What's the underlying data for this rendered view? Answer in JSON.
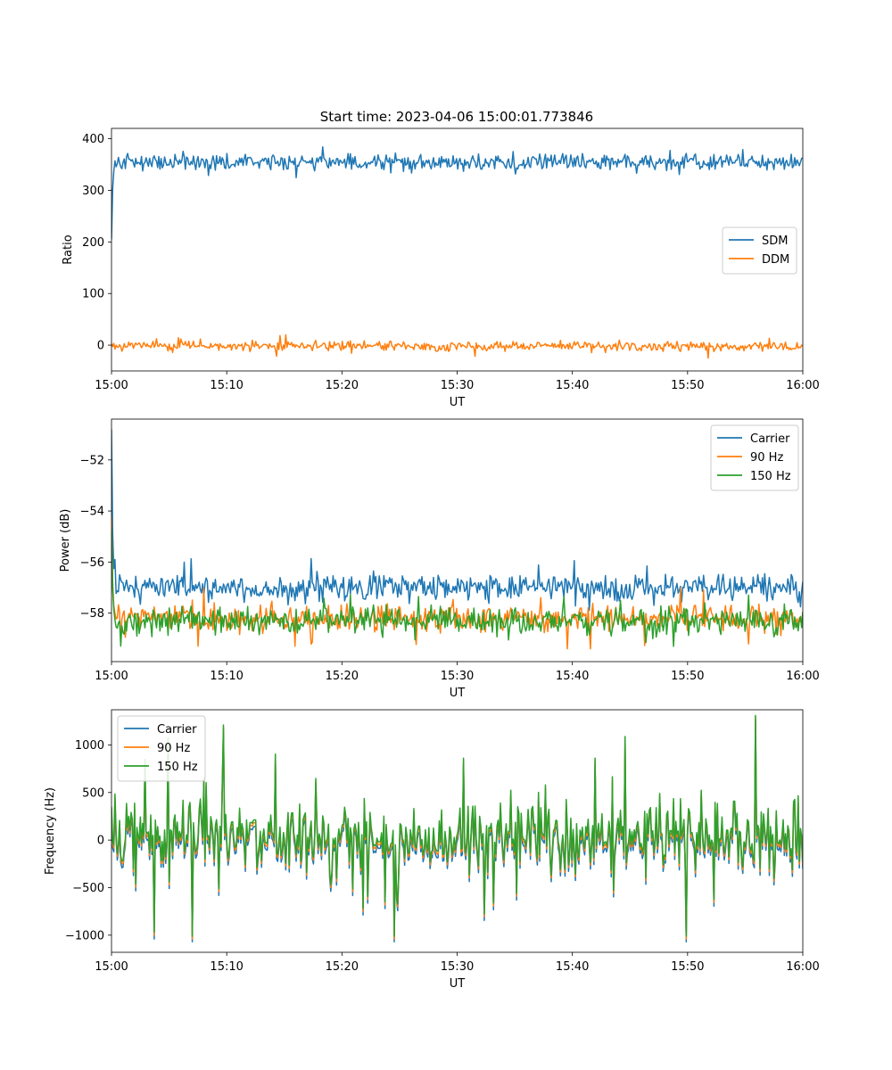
{
  "figure_title": "Start time: 2023-04-06 15:00:01.773846",
  "colors": {
    "blue": "#1f77b4",
    "orange": "#ff7f0e",
    "green": "#2ca02c"
  },
  "chart_data": [
    {
      "type": "line",
      "ylabel": "Ratio",
      "xlabel": "UT",
      "x_range": [
        "15:00",
        "16:00"
      ],
      "x_ticks": [
        "15:00",
        "15:10",
        "15:20",
        "15:30",
        "15:40",
        "15:50",
        "16:00"
      ],
      "ylim": [
        -50,
        420
      ],
      "y_ticks": [
        0,
        100,
        200,
        300,
        400
      ],
      "legend_position": "center-right",
      "series": [
        {
          "name": "SDM",
          "color": "#1f77b4",
          "start_value": 205,
          "mean": 355,
          "noise": 28,
          "min": 308,
          "max": 400
        },
        {
          "name": "DDM",
          "color": "#ff7f0e",
          "mean": -2,
          "noise": 16,
          "min": -26,
          "max": 24
        }
      ]
    },
    {
      "type": "line",
      "ylabel": "Power (dB)",
      "xlabel": "UT",
      "x_range": [
        "15:00",
        "16:00"
      ],
      "x_ticks": [
        "15:00",
        "15:10",
        "15:20",
        "15:30",
        "15:40",
        "15:50",
        "16:00"
      ],
      "ylim": [
        -59.9,
        -50.4
      ],
      "y_ticks": [
        -52,
        -54,
        -56,
        -58
      ],
      "legend_position": "upper-right",
      "series": [
        {
          "name": "Carrier",
          "color": "#1f77b4",
          "start_value": -50.8,
          "mean": -57.0,
          "noise": 0.9,
          "min": -57.9,
          "max": -55.5
        },
        {
          "name": "90 Hz",
          "color": "#ff7f0e",
          "start_value": -54.2,
          "mean": -58.2,
          "noise": 0.9,
          "min": -59.4,
          "max": -56.9
        },
        {
          "name": "150 Hz",
          "color": "#2ca02c",
          "start_value": -54.7,
          "mean": -58.3,
          "noise": 0.9,
          "min": -59.3,
          "max": -56.8
        }
      ]
    },
    {
      "type": "line",
      "ylabel": "Frequency (Hz)",
      "xlabel": "UT",
      "x_range": [
        "15:00",
        "16:00"
      ],
      "x_ticks": [
        "15:00",
        "15:10",
        "15:20",
        "15:30",
        "15:40",
        "15:50",
        "16:00"
      ],
      "ylim": [
        -1180,
        1370
      ],
      "y_ticks": [
        1000,
        500,
        0,
        -500,
        -1000
      ],
      "legend_position": "upper-left",
      "series": [
        {
          "name": "Carrier",
          "color": "#1f77b4",
          "mean": -40,
          "min": -1070,
          "max": 1290
        },
        {
          "name": "90 Hz",
          "color": "#ff7f0e",
          "mean": 0,
          "min": -1040,
          "max": 1300
        },
        {
          "name": "150 Hz",
          "color": "#2ca02c",
          "mean": 30,
          "min": -1010,
          "max": 1310
        }
      ]
    }
  ]
}
